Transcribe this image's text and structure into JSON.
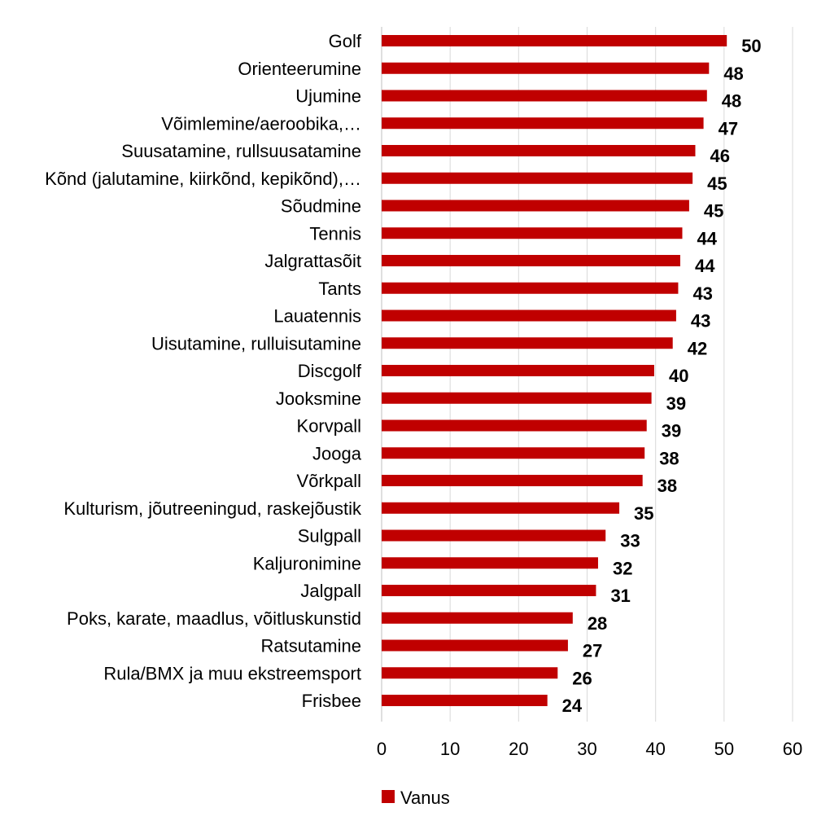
{
  "chart_data": {
    "type": "bar",
    "orientation": "horizontal",
    "categories": [
      "Golf",
      "Orienteerumine",
      "Ujumine",
      "Võimlemine/aeroobika,…",
      "Suusatamine, rullsuusatamine",
      "Kõnd (jalutamine, kiirkõnd, kepikõnd),…",
      "Sõudmine",
      "Tennis",
      "Jalgrattasõit",
      "Tants",
      "Lauatennis",
      "Uisutamine, rulluisutamine",
      "Discgolf",
      "Jooksmine",
      "Korvpall",
      "Jooga",
      "Võrkpall",
      "Kulturism, jõutreeningud, raskejõustik",
      "Sulgpall",
      "Kaljuronimine",
      "Jalgpall",
      "Poks, karate, maadlus, võitluskunstid",
      "Ratsutamine",
      "Rula/BMX ja muu ekstreemsport",
      "Frisbee"
    ],
    "series": [
      {
        "name": "Vanus",
        "values": [
          50,
          48,
          48,
          47,
          46,
          45,
          45,
          44,
          44,
          43,
          43,
          42,
          40,
          39,
          39,
          38,
          38,
          35,
          33,
          32,
          31,
          28,
          27,
          26,
          24
        ],
        "bar_values": [
          50.4,
          47.8,
          47.5,
          47.0,
          45.8,
          45.4,
          44.9,
          43.9,
          43.6,
          43.3,
          43.0,
          42.5,
          39.8,
          39.4,
          38.7,
          38.4,
          38.1,
          34.7,
          32.7,
          31.6,
          31.3,
          27.9,
          27.2,
          25.7,
          24.2
        ],
        "color": "#c00000"
      }
    ],
    "xlim": [
      0,
      60
    ],
    "xticks": [
      0,
      10,
      20,
      30,
      40,
      50,
      60
    ],
    "grid": true,
    "legend": "bottom",
    "title": "",
    "xlabel": "",
    "ylabel": ""
  }
}
